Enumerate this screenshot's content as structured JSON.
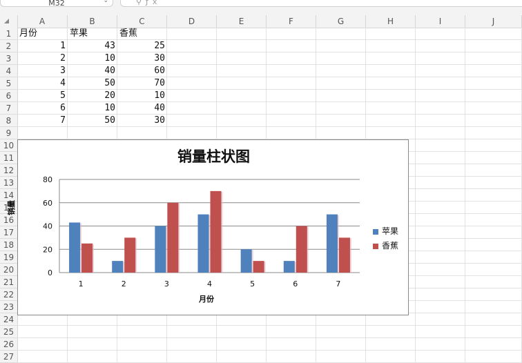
{
  "formula_bar": {
    "cell_ref": "M32"
  },
  "columns": [
    "A",
    "B",
    "C",
    "D",
    "E",
    "F",
    "G",
    "H",
    "I",
    "J"
  ],
  "rows": [
    "1",
    "2",
    "3",
    "4",
    "5",
    "6",
    "7",
    "8",
    "9",
    "10",
    "11",
    "12",
    "13",
    "14",
    "15",
    "16",
    "17",
    "18",
    "19",
    "20",
    "21",
    "22",
    "23",
    "24",
    "25",
    "26",
    "27"
  ],
  "sheet": {
    "header": [
      "月份",
      "苹果",
      "香蕉"
    ],
    "data": [
      [
        "1",
        "43",
        "25"
      ],
      [
        "2",
        "10",
        "30"
      ],
      [
        "3",
        "40",
        "60"
      ],
      [
        "4",
        "50",
        "70"
      ],
      [
        "5",
        "20",
        "10"
      ],
      [
        "6",
        "10",
        "40"
      ],
      [
        "7",
        "50",
        "30"
      ]
    ]
  },
  "chart_data": {
    "type": "bar",
    "title": "销量柱状图",
    "xlabel": "月份",
    "ylabel": "销量",
    "categories": [
      "1",
      "2",
      "3",
      "4",
      "5",
      "6",
      "7"
    ],
    "series": [
      {
        "name": "苹果",
        "color": "#4f81bd",
        "values": [
          43,
          10,
          40,
          50,
          20,
          10,
          50
        ]
      },
      {
        "name": "香蕉",
        "color": "#c0504d",
        "values": [
          25,
          30,
          60,
          70,
          10,
          40,
          30
        ]
      }
    ],
    "ylim": [
      0,
      80
    ],
    "yticks": [
      "0",
      "20",
      "40",
      "60",
      "80"
    ],
    "grid": true,
    "legend": "right"
  }
}
